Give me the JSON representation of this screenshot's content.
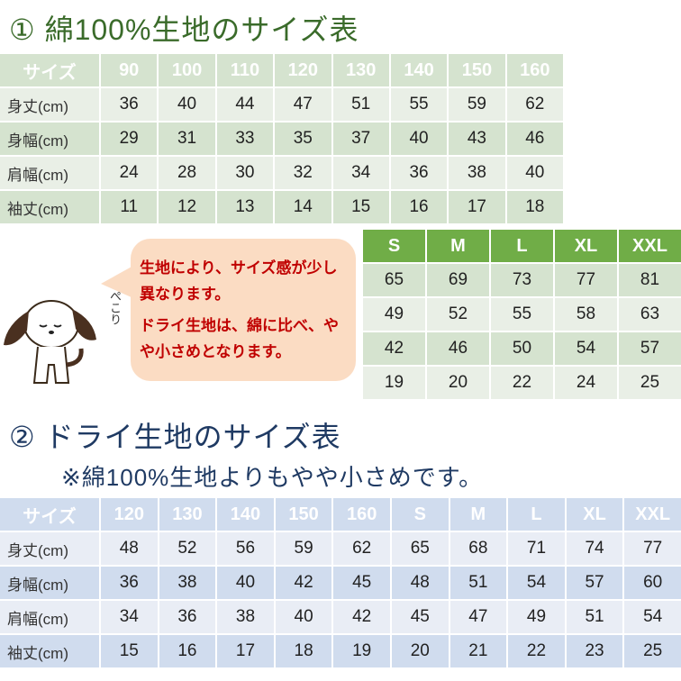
{
  "cotton": {
    "title": "① 綿100%生地のサイズ表",
    "header_label": "サイズ",
    "sizes": [
      "90",
      "100",
      "110",
      "120",
      "130",
      "140",
      "150",
      "160"
    ],
    "rows": [
      {
        "label": "身丈(cm)",
        "values": [
          "36",
          "40",
          "44",
          "47",
          "51",
          "55",
          "59",
          "62"
        ]
      },
      {
        "label": "身幅(cm)",
        "values": [
          "29",
          "31",
          "33",
          "35",
          "37",
          "40",
          "43",
          "46"
        ]
      },
      {
        "label": "肩幅(cm)",
        "values": [
          "24",
          "28",
          "30",
          "32",
          "34",
          "36",
          "38",
          "40"
        ]
      },
      {
        "label": "袖丈(cm)",
        "values": [
          "11",
          "12",
          "13",
          "14",
          "15",
          "16",
          "17",
          "18"
        ]
      }
    ],
    "adult_sizes": [
      "S",
      "M",
      "L",
      "XL",
      "XXL"
    ],
    "adult_rows": [
      [
        "65",
        "69",
        "73",
        "77",
        "81"
      ],
      [
        "49",
        "52",
        "55",
        "58",
        "63"
      ],
      [
        "42",
        "46",
        "50",
        "54",
        "57"
      ],
      [
        "19",
        "20",
        "22",
        "24",
        "25"
      ]
    ],
    "accent": "#70ad47"
  },
  "bubble": {
    "line1": "生地により、サイズ感が少し異なります。",
    "line2": "ドライ生地は、綿に比べ、やや小さめとなります。",
    "dog_caption": "ぺこり",
    "color": "#c00000"
  },
  "dry": {
    "title": "② ドライ生地のサイズ表",
    "note": "※綿100%生地よりもやや小さめです。",
    "header_label": "サイズ",
    "sizes": [
      "120",
      "130",
      "140",
      "150",
      "160",
      "S",
      "M",
      "L",
      "XL",
      "XXL"
    ],
    "rows": [
      {
        "label": "身丈(cm)",
        "values": [
          "48",
          "52",
          "56",
          "59",
          "62",
          "65",
          "68",
          "71",
          "74",
          "77"
        ]
      },
      {
        "label": "身幅(cm)",
        "values": [
          "36",
          "38",
          "40",
          "42",
          "45",
          "48",
          "51",
          "54",
          "57",
          "60"
        ]
      },
      {
        "label": "肩幅(cm)",
        "values": [
          "34",
          "36",
          "38",
          "40",
          "42",
          "45",
          "47",
          "49",
          "51",
          "54"
        ]
      },
      {
        "label": "袖丈(cm)",
        "values": [
          "15",
          "16",
          "17",
          "18",
          "19",
          "20",
          "21",
          "22",
          "23",
          "25"
        ]
      }
    ],
    "accent": "#5b9bd5"
  }
}
